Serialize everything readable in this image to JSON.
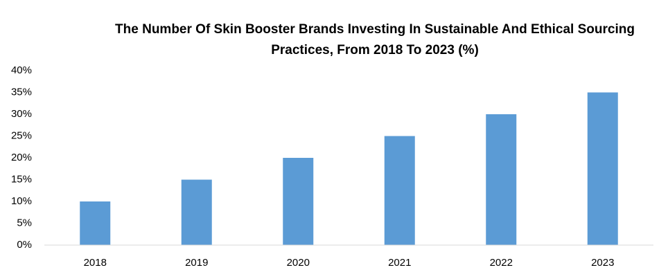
{
  "chart_data": {
    "type": "bar",
    "title": "The Number Of Skin Booster Brands Investing In Sustainable And Ethical Sourcing Practices, From 2018 To 2023 (%)",
    "categories": [
      "2018",
      "2019",
      "2020",
      "2021",
      "2022",
      "2023"
    ],
    "values": [
      10,
      15,
      20,
      25,
      30,
      35
    ],
    "color": "#5b9bd5",
    "ylim": [
      0,
      40
    ],
    "yticks": [
      {
        "value": 0,
        "label": "0%"
      },
      {
        "value": 5,
        "label": "5%"
      },
      {
        "value": 10,
        "label": "10%"
      },
      {
        "value": 15,
        "label": "15%"
      },
      {
        "value": 20,
        "label": "20%"
      },
      {
        "value": 25,
        "label": "25%"
      },
      {
        "value": 30,
        "label": "30%"
      },
      {
        "value": 35,
        "label": "35%"
      },
      {
        "value": 40,
        "label": "40%"
      }
    ],
    "grid": false
  }
}
